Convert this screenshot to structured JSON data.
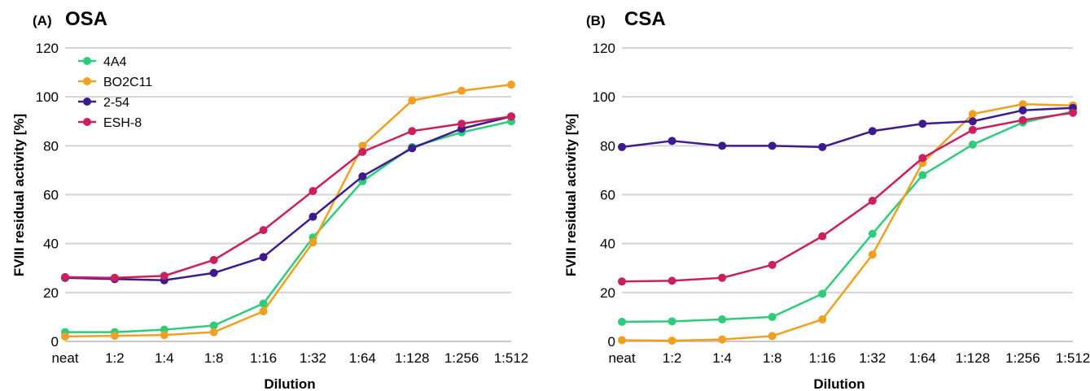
{
  "chart_data": [
    {
      "type": "line",
      "panel_label": "(A)",
      "title": "OSA",
      "xlabel": "Dilution",
      "ylabel": "FVIII residual activity [%]",
      "ylim": [
        0,
        120
      ],
      "yticks": [
        0,
        20,
        40,
        60,
        80,
        100,
        120
      ],
      "grid": true,
      "legend": "top-left",
      "categories": [
        "neat",
        "1:2",
        "1:4",
        "1:8",
        "1:16",
        "1:32",
        "1:64",
        "1:128",
        "1:256",
        "1:512"
      ],
      "series": [
        {
          "name": "4A4",
          "color": "#2ecc7a",
          "values": [
            3.8,
            3.8,
            4.8,
            6.5,
            15.5,
            42.5,
            65.5,
            79.5,
            85.5,
            90
          ]
        },
        {
          "name": "BO2C11",
          "color": "#f0a020",
          "values": [
            2,
            2.3,
            2.6,
            3.8,
            12.3,
            40.5,
            80,
            98.5,
            102.5,
            105
          ]
        },
        {
          "name": "2-54",
          "color": "#3d1a8f",
          "values": [
            26,
            25.5,
            25,
            28,
            34.5,
            51,
            67.5,
            79,
            87,
            92
          ]
        },
        {
          "name": "ESH-8",
          "color": "#cc1f5e",
          "values": [
            26.3,
            26,
            26.8,
            33.3,
            45.5,
            61.5,
            77.5,
            86,
            89,
            92
          ]
        }
      ]
    },
    {
      "type": "line",
      "panel_label": "(B)",
      "title": "CSA",
      "xlabel": "Dilution",
      "ylabel": "FVIII residual activity [%]",
      "ylim": [
        0,
        120
      ],
      "yticks": [
        0,
        20,
        40,
        60,
        80,
        100,
        120
      ],
      "grid": true,
      "legend": "none",
      "categories": [
        "neat",
        "1:2",
        "1:4",
        "1:8",
        "1:16",
        "1:32",
        "1:64",
        "1:128",
        "1:256",
        "1:512"
      ],
      "series": [
        {
          "name": "4A4",
          "color": "#2ecc7a",
          "values": [
            8,
            8.2,
            9,
            10,
            19.5,
            44,
            68,
            80.5,
            89.5,
            94
          ]
        },
        {
          "name": "BO2C11",
          "color": "#f0a020",
          "values": [
            0.5,
            0.3,
            0.8,
            2.2,
            9,
            35.5,
            73,
            93,
            97,
            96.5
          ]
        },
        {
          "name": "2-54",
          "color": "#3d1a8f",
          "values": [
            79.5,
            82,
            80,
            80,
            79.5,
            86,
            89,
            90,
            94.5,
            95.5
          ]
        },
        {
          "name": "ESH-8",
          "color": "#cc1f5e",
          "values": [
            24.5,
            24.8,
            26,
            31.3,
            43,
            57.5,
            75,
            86.5,
            90.5,
            93.5
          ]
        }
      ]
    }
  ]
}
